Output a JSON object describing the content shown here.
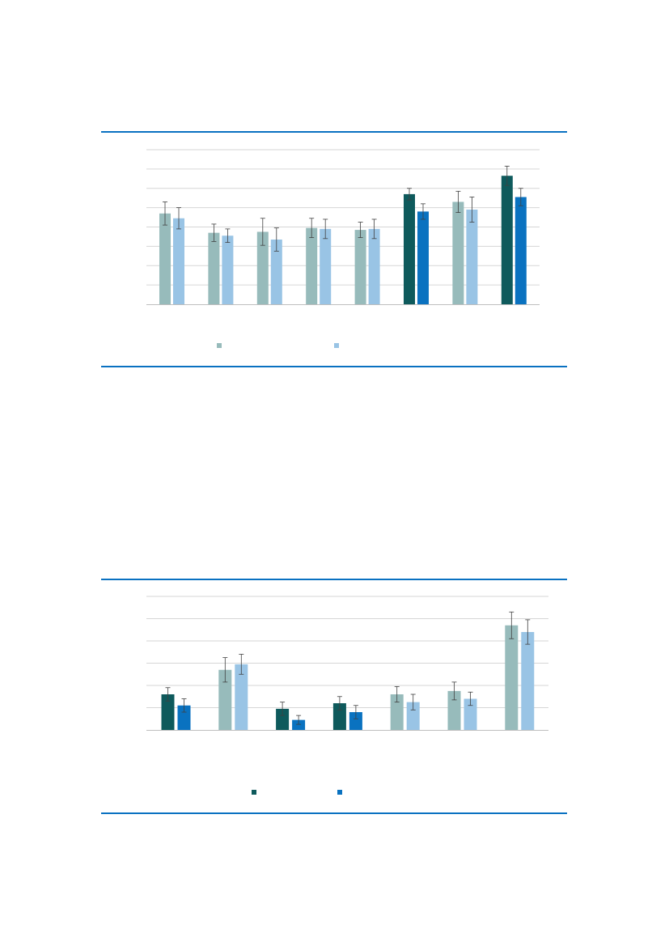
{
  "colors": {
    "rule": "#0a71c1",
    "grid": "#d6d6d6",
    "axis": "#bfbfbf",
    "error": "#404040",
    "sage": "#97bbbb",
    "light_blue": "#99c4e5",
    "dark_teal": "#0e5a5c",
    "blue": "#0a72c0"
  },
  "chart_data": [
    {
      "type": "bar",
      "title": "",
      "xlabel": "",
      "ylabel": "",
      "grid": true,
      "ylim": [
        0,
        8
      ],
      "legend_position": "bottom-center",
      "categories": [
        "",
        "",
        "",
        "",
        "",
        "",
        "",
        ""
      ],
      "series": [
        {
          "legend_color": "#97bbbb",
          "colors": [
            "#97bbbb",
            "#97bbbb",
            "#97bbbb",
            "#97bbbb",
            "#97bbbb",
            "#0e5a5c",
            "#97bbbb",
            "#0e5a5c"
          ],
          "values": [
            4.7,
            3.7,
            3.75,
            3.95,
            3.85,
            5.7,
            5.3,
            6.65
          ],
          "errors": [
            0.6,
            0.45,
            0.7,
            0.5,
            0.4,
            0.3,
            0.55,
            0.5
          ]
        },
        {
          "legend_color": "#99c4e5",
          "colors": [
            "#99c4e5",
            "#99c4e5",
            "#99c4e5",
            "#99c4e5",
            "#99c4e5",
            "#0a72c0",
            "#99c4e5",
            "#0a72c0"
          ],
          "values": [
            4.45,
            3.55,
            3.35,
            3.9,
            3.9,
            4.8,
            4.9,
            5.55
          ],
          "errors": [
            0.55,
            0.35,
            0.6,
            0.5,
            0.5,
            0.4,
            0.65,
            0.45
          ]
        }
      ]
    },
    {
      "type": "bar",
      "title": "",
      "xlabel": "",
      "ylabel": "",
      "grid": true,
      "ylim": [
        0,
        6
      ],
      "legend_position": "bottom-center",
      "categories": [
        "",
        "",
        "",
        "",
        "",
        "",
        ""
      ],
      "series": [
        {
          "legend_color": "#0e5a5c",
          "colors": [
            "#0e5a5c",
            "#97bbbb",
            "#0e5a5c",
            "#0e5a5c",
            "#97bbbb",
            "#97bbbb",
            "#97bbbb"
          ],
          "values": [
            1.6,
            2.7,
            0.95,
            1.2,
            1.6,
            1.75,
            4.7
          ],
          "errors": [
            0.3,
            0.55,
            0.3,
            0.3,
            0.35,
            0.4,
            0.6
          ]
        },
        {
          "legend_color": "#0a72c0",
          "colors": [
            "#0a72c0",
            "#99c4e5",
            "#0a72c0",
            "#0a72c0",
            "#99c4e5",
            "#99c4e5",
            "#99c4e5"
          ],
          "values": [
            1.1,
            2.95,
            0.45,
            0.8,
            1.25,
            1.4,
            4.4
          ],
          "errors": [
            0.3,
            0.45,
            0.2,
            0.3,
            0.35,
            0.3,
            0.55
          ]
        }
      ]
    }
  ]
}
